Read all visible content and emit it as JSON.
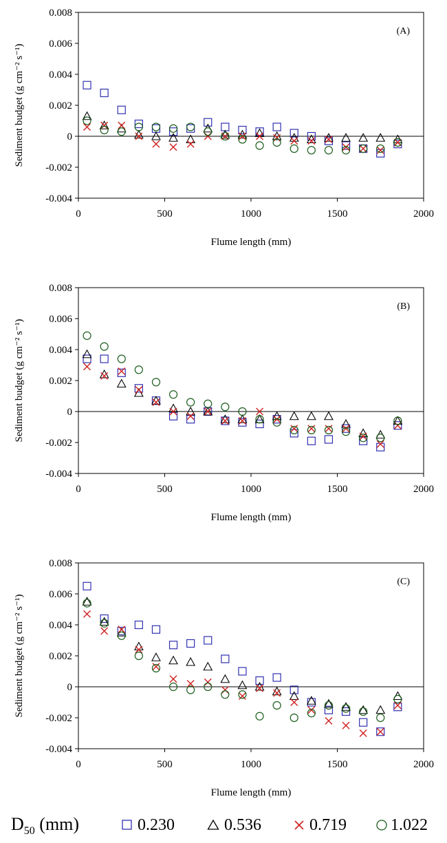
{
  "legend": {
    "title": "D50 (mm)",
    "title_main": "D",
    "title_sub": "50",
    "title_rest": " (mm)",
    "entries": [
      {
        "marker": "square",
        "label": "0.230",
        "color": "#3030b0"
      },
      {
        "marker": "triangle",
        "label": "0.536",
        "color": "#000000"
      },
      {
        "marker": "cross",
        "label": "0.719",
        "color": "#d02020"
      },
      {
        "marker": "circle",
        "label": "1.022",
        "color": "#1a5c1a"
      }
    ]
  },
  "chart_data": [
    {
      "type": "scatter",
      "panel_label": "(A)",
      "xlabel": "Flume length (mm)",
      "ylabel": "Sediment budget (g cm⁻² s⁻¹)",
      "xlim": [
        0,
        2000
      ],
      "ylim": [
        -0.004,
        0.008
      ],
      "xticks": [
        0,
        500,
        1000,
        1500,
        2000
      ],
      "yticks": [
        -0.004,
        -0.002,
        0,
        0.002,
        0.004,
        0.006,
        0.008
      ],
      "ytick_labels": [
        "-0.004",
        "-0.002",
        "0",
        "0.002",
        "0.004",
        "0.006",
        "0.008"
      ],
      "zero_line": true,
      "x": [
        50,
        150,
        250,
        350,
        450,
        550,
        650,
        750,
        850,
        950,
        1050,
        1150,
        1250,
        1350,
        1450,
        1550,
        1650,
        1750,
        1850
      ],
      "series": [
        {
          "name": "0.230",
          "values": [
            0.0033,
            0.0028,
            0.0017,
            0.0008,
            0.0005,
            0.0003,
            0.0005,
            0.0009,
            0.0006,
            0.0004,
            0.0003,
            0.0006,
            0.0002,
            0.0,
            -0.0003,
            -0.0006,
            -0.0008,
            -0.0011,
            -0.0005
          ]
        },
        {
          "name": "0.536",
          "values": [
            0.0013,
            0.0007,
            0.0005,
            0.0001,
            0.0,
            -0.0001,
            -0.0002,
            0.0005,
            0.0001,
            0.0001,
            0.0002,
            0.0,
            -0.0001,
            -0.0002,
            -0.0001,
            -0.0001,
            -0.0001,
            -0.0001,
            -0.0002
          ]
        },
        {
          "name": "0.719",
          "values": [
            0.0006,
            0.0007,
            0.0007,
            0.0,
            -0.0005,
            -0.0007,
            -0.0005,
            0.0,
            0.0,
            0.0,
            0.0,
            -0.0001,
            -0.0003,
            -0.0003,
            -0.0002,
            -0.0007,
            -0.0008,
            -0.0009,
            -0.0004
          ]
        },
        {
          "name": "1.022",
          "values": [
            0.001,
            0.0004,
            0.0003,
            0.0006,
            0.0006,
            0.0005,
            0.0006,
            0.0003,
            0.0,
            -0.0002,
            -0.0006,
            -0.0004,
            -0.0008,
            -0.0009,
            -0.0009,
            -0.0009,
            -0.0008,
            -0.0008,
            -0.0004
          ]
        }
      ]
    },
    {
      "type": "scatter",
      "panel_label": "(B)",
      "xlabel": "Flume length (mm)",
      "ylabel": "Sediment budget (g cm⁻² s⁻¹)",
      "xlim": [
        0,
        2000
      ],
      "ylim": [
        -0.004,
        0.008
      ],
      "xticks": [
        0,
        500,
        1000,
        1500,
        2000
      ],
      "yticks": [
        -0.004,
        -0.002,
        0,
        0.002,
        0.004,
        0.006,
        0.008
      ],
      "ytick_labels": [
        "-0.004",
        "-0.002",
        "0",
        "0.002",
        "0.004",
        "0.006",
        "0.008"
      ],
      "zero_line": true,
      "x": [
        50,
        150,
        250,
        350,
        450,
        550,
        650,
        750,
        850,
        950,
        1050,
        1150,
        1250,
        1350,
        1450,
        1550,
        1650,
        1750,
        1850
      ],
      "series": [
        {
          "name": "0.230",
          "values": [
            0.0034,
            0.0034,
            0.0025,
            0.0015,
            0.0007,
            -0.0003,
            -0.0005,
            0.0,
            -0.0006,
            -0.0007,
            -0.0008,
            -0.0005,
            -0.0014,
            -0.0019,
            -0.0018,
            -0.0011,
            -0.0019,
            -0.0023,
            -0.0009
          ]
        },
        {
          "name": "0.536",
          "values": [
            0.0037,
            0.0024,
            0.0018,
            0.0012,
            0.0007,
            0.0002,
            0.0,
            0.0,
            -0.0005,
            -0.0005,
            -0.0005,
            -0.0003,
            -0.0003,
            -0.0003,
            -0.0003,
            -0.0008,
            -0.0014,
            -0.0015,
            -0.0006
          ]
        },
        {
          "name": "0.719",
          "values": [
            0.0029,
            0.0023,
            0.0026,
            0.0014,
            0.0006,
            0.0,
            -0.0003,
            0.0,
            -0.0006,
            -0.0006,
            0.0,
            -0.0005,
            -0.0011,
            -0.0011,
            -0.0011,
            -0.0011,
            -0.0016,
            -0.0021,
            -0.0009
          ]
        },
        {
          "name": "1.022",
          "values": [
            0.0049,
            0.0042,
            0.0034,
            0.0027,
            0.0019,
            0.0011,
            0.0006,
            0.0005,
            0.0003,
            0.0,
            -0.0005,
            -0.0007,
            -0.0012,
            -0.0012,
            -0.0012,
            -0.0013,
            -0.0017,
            -0.0017,
            -0.0006
          ]
        }
      ]
    },
    {
      "type": "scatter",
      "panel_label": "(C)",
      "xlabel": "Flume length (mm)",
      "ylabel": "Sediment budget (g cm⁻² s⁻¹)",
      "xlim": [
        0,
        2000
      ],
      "ylim": [
        -0.004,
        0.008
      ],
      "xticks": [
        0,
        500,
        1000,
        1500,
        2000
      ],
      "yticks": [
        -0.004,
        -0.002,
        0,
        0.002,
        0.004,
        0.006,
        0.008
      ],
      "ytick_labels": [
        "-0.004",
        "-0.002",
        "0",
        "0.002",
        "0.004",
        "0.006",
        "0.008"
      ],
      "zero_line": true,
      "x": [
        50,
        150,
        250,
        350,
        450,
        550,
        650,
        750,
        850,
        950,
        1050,
        1150,
        1250,
        1350,
        1450,
        1550,
        1650,
        1750,
        1850
      ],
      "series": [
        {
          "name": "0.230",
          "values": [
            0.0065,
            0.0044,
            0.0036,
            0.004,
            0.0037,
            0.0027,
            0.0028,
            0.003,
            0.0018,
            0.001,
            0.0004,
            0.0006,
            -0.0002,
            -0.001,
            -0.0015,
            -0.0016,
            -0.0023,
            -0.0029,
            -0.0013
          ]
        },
        {
          "name": "0.536",
          "values": [
            0.0055,
            0.0042,
            0.0035,
            0.0026,
            0.0019,
            0.0017,
            0.0016,
            0.0013,
            0.0005,
            0.0001,
            0.0,
            -0.0003,
            -0.0006,
            -0.0009,
            -0.0011,
            -0.0013,
            -0.0015,
            -0.0015,
            -0.0006
          ]
        },
        {
          "name": "0.719",
          "values": [
            0.0047,
            0.0036,
            0.0037,
            0.0024,
            0.0013,
            0.0005,
            0.0002,
            0.0003,
            -0.0002,
            -0.0006,
            -0.0001,
            -0.0004,
            -0.001,
            -0.0015,
            -0.0022,
            -0.0025,
            -0.003,
            -0.0029,
            -0.0012
          ]
        },
        {
          "name": "1.022",
          "values": [
            0.0054,
            0.0041,
            0.0033,
            0.002,
            0.0012,
            0.0,
            -0.0002,
            0.0,
            -0.0005,
            -0.0005,
            -0.0019,
            -0.0012,
            -0.002,
            -0.0017,
            -0.0012,
            -0.0014,
            -0.0016,
            -0.002,
            -0.0008
          ]
        }
      ]
    }
  ]
}
